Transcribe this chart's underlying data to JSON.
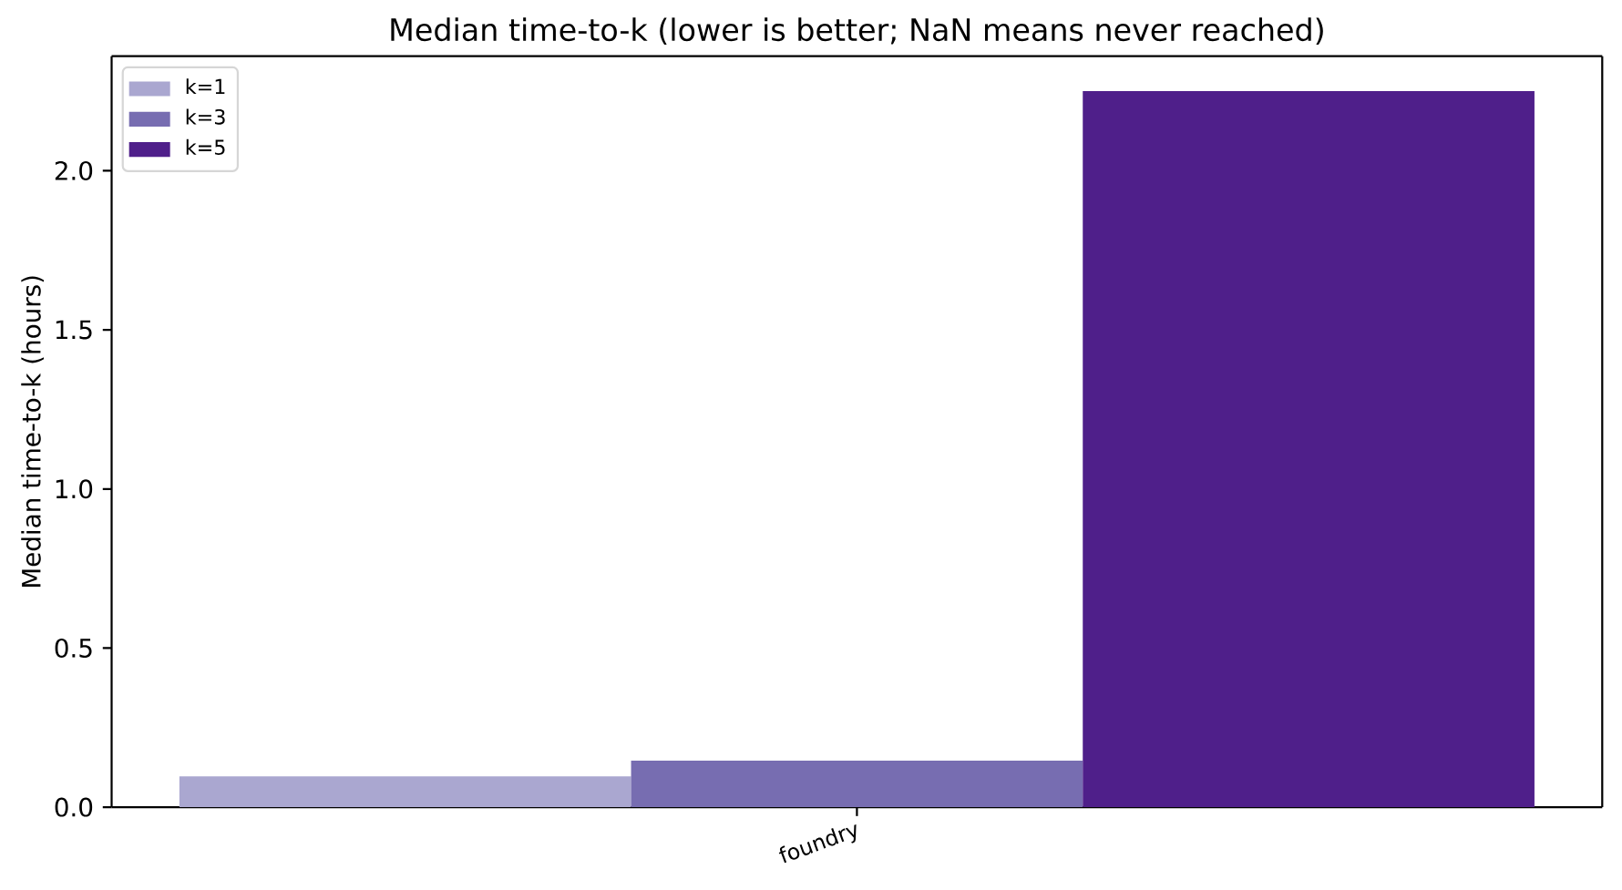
{
  "chart_data": {
    "type": "bar",
    "title": "Median time-to-k (lower is better; NaN means never reached)",
    "ylabel": "Median time-to-k (hours)",
    "categories": [
      "foundry"
    ],
    "series": [
      {
        "name": "k=1",
        "color": "#aaa7d0",
        "values": [
          0.097
        ]
      },
      {
        "name": "k=3",
        "color": "#776db1",
        "values": [
          0.146
        ]
      },
      {
        "name": "k=5",
        "color": "#4f1f8a",
        "values": [
          2.25
        ]
      }
    ],
    "ylim": [
      0,
      2.36
    ],
    "yticks": [
      {
        "value": 0,
        "label": "0.0"
      },
      {
        "value": 0.5,
        "label": "0.5"
      },
      {
        "value": 1,
        "label": "1.0"
      },
      {
        "value": 1.5,
        "label": "1.5"
      },
      {
        "value": 2,
        "label": "2.0"
      }
    ],
    "legend": "top left",
    "grid": false
  }
}
